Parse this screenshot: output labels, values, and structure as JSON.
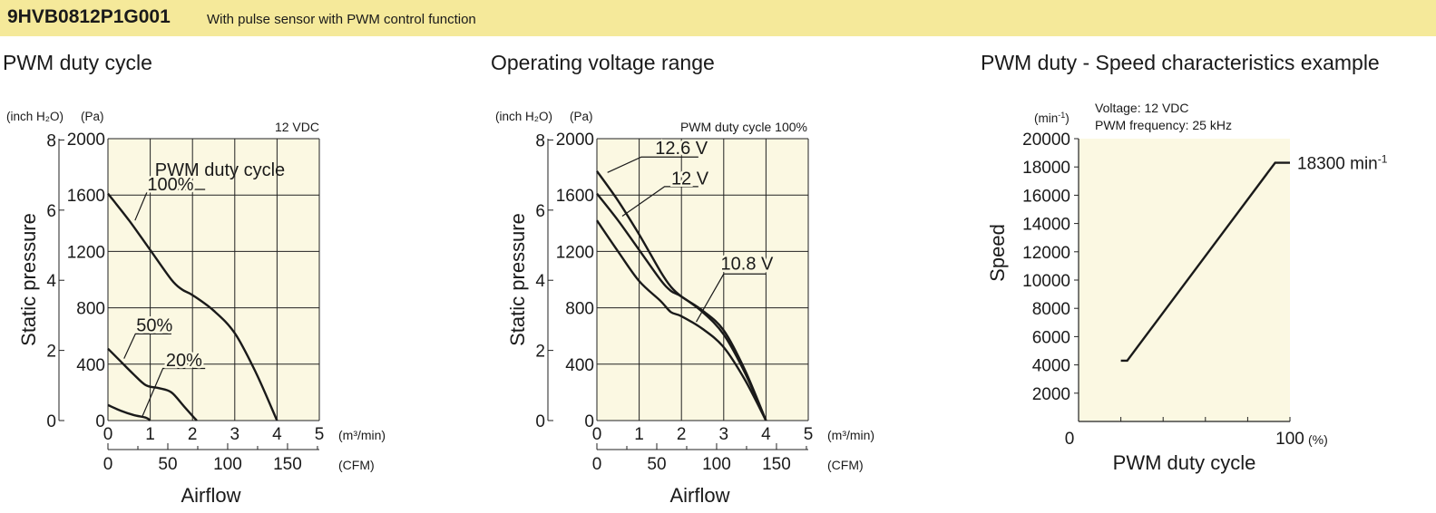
{
  "header": {
    "model": "9HVB0812P1G001",
    "description": "With pulse sensor with PWM control function"
  },
  "colors": {
    "banner": "#f5e99a",
    "plot_background": "#fbf8e2",
    "line": "#1a1a1a"
  },
  "chart_data": [
    {
      "type": "line",
      "title": "PWM duty cycle",
      "condition": "12 VDC",
      "legend_title": "PWM duty cycle",
      "xlabel": "Airflow",
      "ylabel": "Static pressure",
      "x_unit": "(m³/min)",
      "x2_unit": "(CFM)",
      "y_unit_inch": "(inch H₂O)",
      "y_unit_pa": "(Pa)",
      "xlim": [
        0,
        5
      ],
      "ylim": [
        0,
        2000
      ],
      "xticks": [
        "0",
        "1",
        "2",
        "3",
        "4",
        "5"
      ],
      "yticks": [
        "0",
        "400",
        "800",
        "1200",
        "1600",
        "2000"
      ],
      "y_inch_ticks": [
        "0",
        "2",
        "4",
        "6",
        "8"
      ],
      "cfm_ticks": [
        "0",
        "50",
        "100",
        "150"
      ],
      "grid": true,
      "series": [
        {
          "name": "100%",
          "x": [
            0,
            0.5,
            1.0,
            1.5,
            1.75,
            2.0,
            2.5,
            3.0,
            3.5,
            4.0
          ],
          "y": [
            1610,
            1420,
            1210,
            1000,
            930,
            890,
            780,
            620,
            340,
            0
          ]
        },
        {
          "name": "50%",
          "x": [
            0,
            0.3,
            0.6,
            0.9,
            1.2,
            1.5,
            1.8,
            2.1
          ],
          "y": [
            510,
            420,
            330,
            250,
            230,
            200,
            100,
            0
          ]
        },
        {
          "name": "20%",
          "x": [
            0,
            0.3,
            0.6,
            0.9,
            1.0
          ],
          "y": [
            110,
            70,
            40,
            20,
            0
          ]
        }
      ]
    },
    {
      "type": "line",
      "title": "Operating voltage range",
      "condition": "PWM duty cycle 100%",
      "xlabel": "Airflow",
      "ylabel": "Static pressure",
      "x_unit": "(m³/min)",
      "x2_unit": "(CFM)",
      "y_unit_inch": "(inch H₂O)",
      "y_unit_pa": "(Pa)",
      "xlim": [
        0,
        5
      ],
      "ylim": [
        0,
        2000
      ],
      "xticks": [
        "0",
        "1",
        "2",
        "3",
        "4",
        "5"
      ],
      "yticks": [
        "0",
        "400",
        "800",
        "1200",
        "1600",
        "2000"
      ],
      "y_inch_ticks": [
        "0",
        "2",
        "4",
        "6",
        "8"
      ],
      "cfm_ticks": [
        "0",
        "50",
        "100",
        "150"
      ],
      "grid": true,
      "series": [
        {
          "name": "12.6 V",
          "x": [
            0,
            0.5,
            1.0,
            1.5,
            1.75,
            2.0,
            2.5,
            3.0,
            3.5,
            4.0
          ],
          "y": [
            1770,
            1560,
            1320,
            1060,
            950,
            880,
            780,
            640,
            360,
            0
          ]
        },
        {
          "name": "12 V",
          "x": [
            0,
            0.5,
            1.0,
            1.5,
            1.75,
            2.0,
            2.5,
            3.0,
            3.5,
            4.0
          ],
          "y": [
            1610,
            1420,
            1210,
            1000,
            920,
            880,
            770,
            610,
            340,
            0
          ]
        },
        {
          "name": "10.8 V",
          "x": [
            0,
            0.5,
            1.0,
            1.5,
            1.75,
            2.0,
            2.5,
            3.0,
            3.5,
            4.0
          ],
          "y": [
            1420,
            1200,
            990,
            850,
            770,
            740,
            650,
            520,
            290,
            0
          ]
        }
      ]
    },
    {
      "type": "line",
      "title": "PWM duty - Speed characteristics example",
      "conditions": [
        "Voltage: 12 VDC",
        "PWM frequency: 25 kHz"
      ],
      "xlabel": "PWM duty cycle",
      "ylabel": "Speed",
      "x_unit": "(%)",
      "y_unit": "(min-1)",
      "xlim": [
        0,
        100
      ],
      "ylim": [
        0,
        20000
      ],
      "x_tick_labels": [
        "0",
        "100"
      ],
      "yticks": [
        "2000",
        "4000",
        "6000",
        "8000",
        "10000",
        "12000",
        "14000",
        "16000",
        "18000",
        "20000"
      ],
      "grid": false,
      "series": [
        {
          "x": [
            20,
            23,
            93,
            100
          ],
          "y": [
            4300,
            4300,
            18300,
            18300
          ]
        }
      ],
      "annotation": "18300 min",
      "annotation_sup": "-1"
    }
  ]
}
